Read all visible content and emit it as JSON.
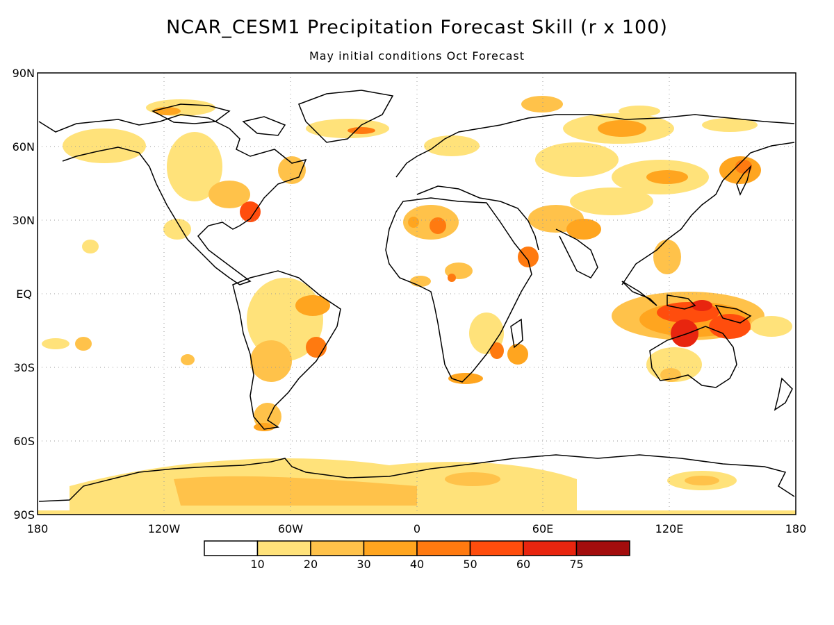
{
  "title": "NCAR_CESM1 Precipitation Forecast Skill (r x 100)",
  "subtitle": "May initial conditions  Oct Forecast",
  "axes": {
    "lat_labels": [
      "90N",
      "60N",
      "30N",
      "EQ",
      "30S",
      "60S",
      "90S"
    ],
    "lon_labels": [
      "180",
      "120W",
      "60W",
      "0",
      "60E",
      "120E",
      "180"
    ]
  },
  "colorbar": {
    "levels": [
      "10",
      "20",
      "30",
      "40",
      "50",
      "60",
      "75"
    ],
    "colors": [
      "#ffffff",
      "#ffe27a",
      "#ffc24a",
      "#ffa51f",
      "#ff7a10",
      "#ff4d0d",
      "#e8250f",
      "#a30d0d"
    ]
  },
  "skill_regions": [
    {
      "region": "maritime-continent-north-australia",
      "level": 5
    },
    {
      "region": "new-guinea",
      "level": 6
    },
    {
      "region": "southeast-us-coast",
      "level": 5
    },
    {
      "region": "sahara",
      "level": 4
    },
    {
      "region": "siberia",
      "level": 3
    },
    {
      "region": "east-asia",
      "level": 4
    },
    {
      "region": "amazon",
      "level": 3
    },
    {
      "region": "antarctica",
      "level": 2
    },
    {
      "region": "south-pacific-antarctic",
      "level": 2
    }
  ]
}
